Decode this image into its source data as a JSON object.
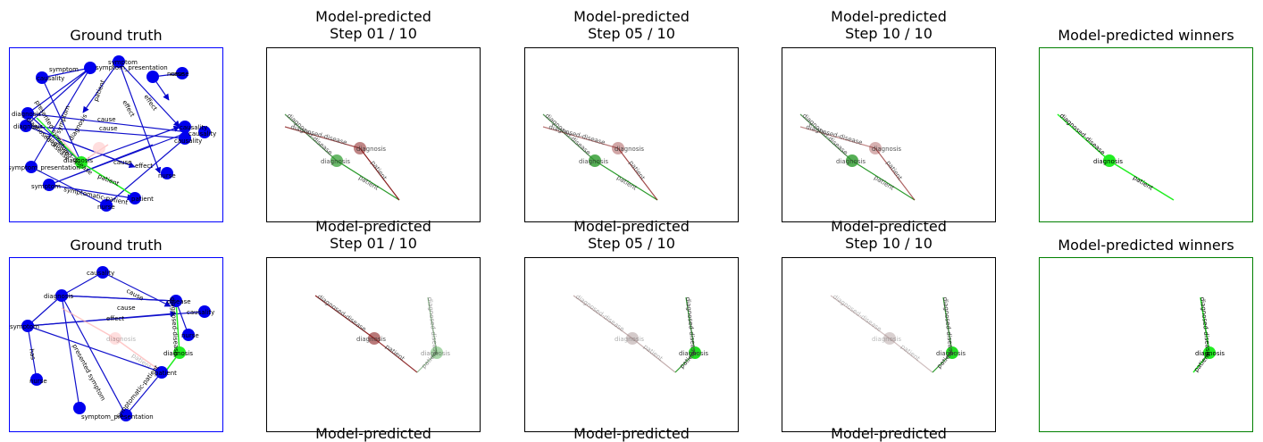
{
  "colors": {
    "gt_border": "#0000ff",
    "pred_border": "#000000",
    "winners_border": "#008000",
    "gt_node": "#0000ee",
    "green": "#22ee22",
    "red": "#8b2020"
  },
  "rows": [
    {
      "gt_title": "Ground truth",
      "step_titles": [
        [
          "Model-predicted",
          "Step 01 / 10"
        ],
        [
          "Model-predicted",
          "Step 05 / 10"
        ],
        [
          "Model-predicted",
          "Step 10 / 10"
        ]
      ],
      "winners_title": "Model-predicted winners",
      "gt_labels": [
        "symptom",
        "symptom",
        "symptom_presentation",
        "causality",
        "cause",
        "effect",
        "diagnosis",
        "diagnosis",
        "causality",
        "causality",
        "symptom_presentation",
        "symptom",
        "diagnosis",
        "diagnosis",
        "patient",
        "cause",
        "cause",
        "effect",
        "symptom",
        "patient",
        "diagnosed-disease",
        "diagnosed-disease",
        "presented symptom",
        "symptomatic-patient",
        "nurse",
        "nurse",
        "nurse",
        "effect",
        "cause",
        "patient",
        "causality"
      ],
      "step_labels": [
        "diagnosis",
        "diagnosis",
        "diagnosed-disease",
        "diagnosed-disease",
        "patient",
        "patient"
      ],
      "winner_labels": [
        "diagnosis",
        "diagnosed-disease",
        "patient"
      ]
    },
    {
      "gt_title": "Ground truth",
      "step_titles": [
        [
          "Model-predicted",
          "Step 01 / 10"
        ],
        [
          "Model-predicted",
          "Step 05 / 10"
        ],
        [
          "Model-predicted",
          "Step 10 / 10"
        ]
      ],
      "winners_title": "Model-predicted winners",
      "gt_labels": [
        "causality",
        "diagnosis",
        "symptom",
        "disease",
        "causality",
        "nurse",
        "diagnosis",
        "patient",
        "nurse",
        "symptom_presentation",
        "cause",
        "cause",
        "effect",
        "has",
        "presented symptom",
        "symptomatic-patient",
        "diagnosed-disease",
        "diagnosis",
        "patient"
      ],
      "step_labels": [
        "diagnosis",
        "diagnosis",
        "diagnosed-disease",
        "diagnosed-disease",
        "patient",
        "patient"
      ],
      "winner_labels": [
        "diagnosis",
        "diagnosed-disease",
        "patient"
      ]
    }
  ],
  "cut_titles": [
    "Model-predicted",
    "Model-predicted",
    "Model-predicted"
  ]
}
